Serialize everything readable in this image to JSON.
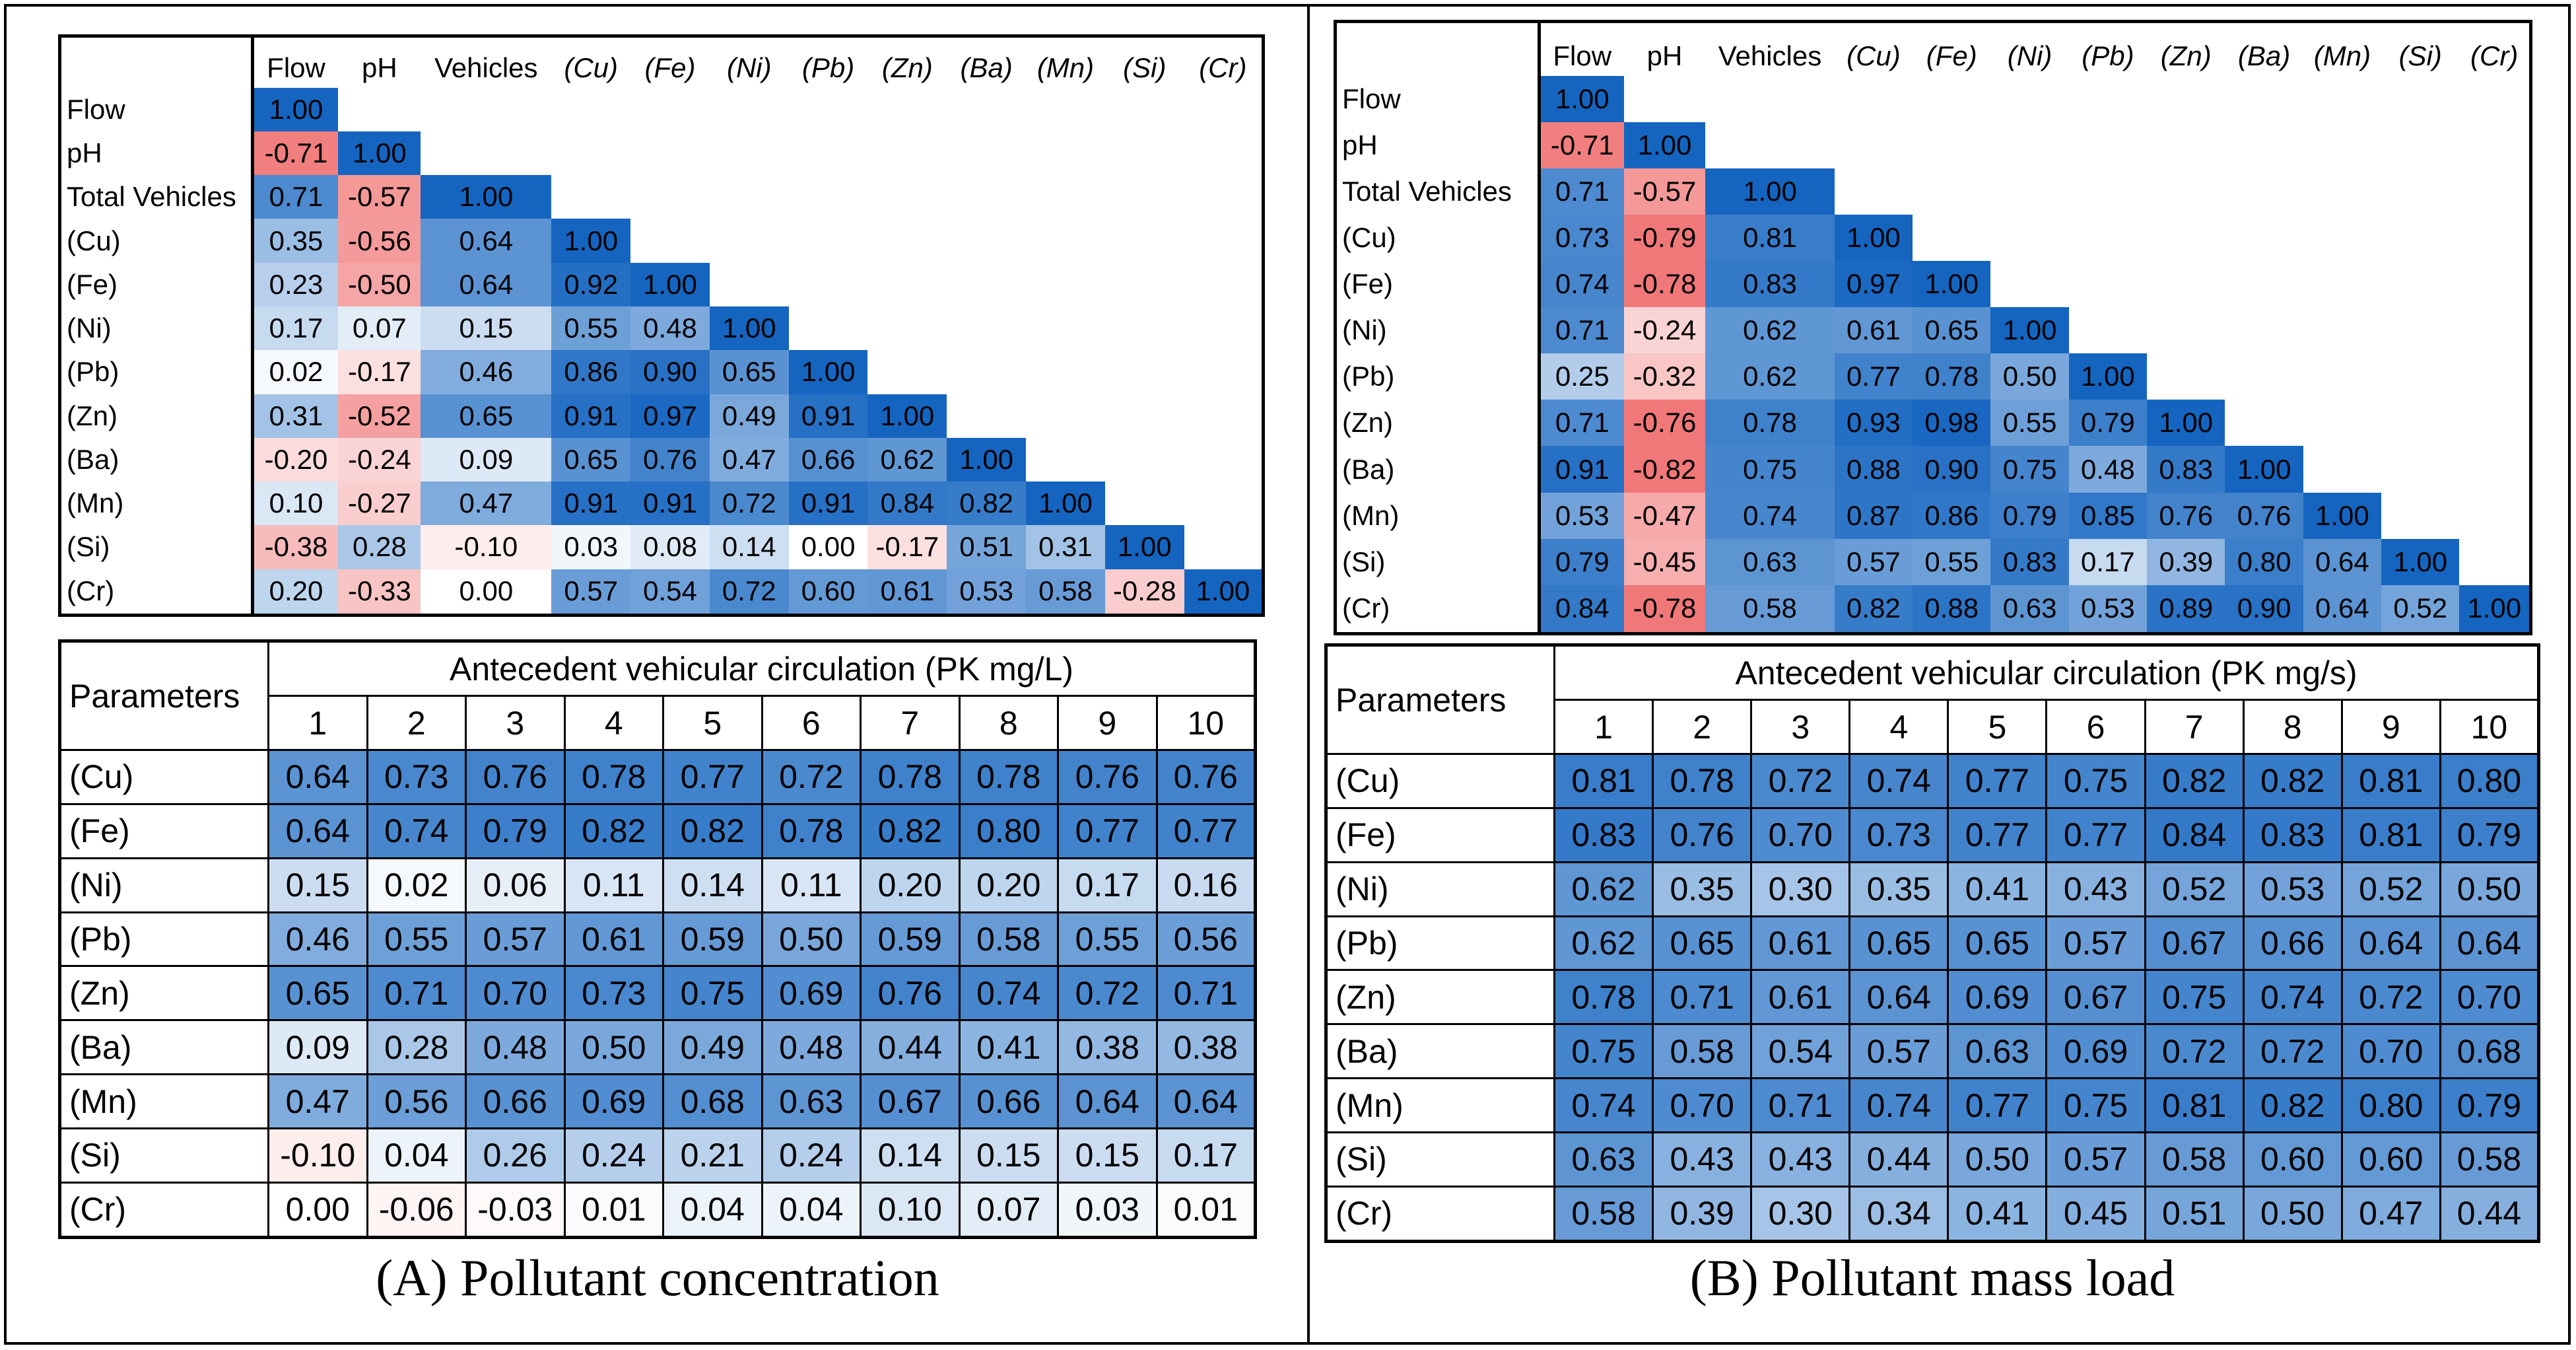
{
  "chart_data": [
    {
      "type": "heatmap",
      "id": "A-correlation",
      "col_labels": [
        "Flow",
        "pH",
        "Vehicles",
        "(Cu)",
        "(Fe)",
        "(Ni)",
        "(Pb)",
        "(Zn)",
        "(Ba)",
        "(Mn)",
        "(Si)",
        "(Cr)"
      ],
      "row_labels": [
        "Flow",
        "pH",
        "Total Vehicles",
        "(Cu)",
        "(Fe)",
        "(Ni)",
        "(Pb)",
        "(Zn)",
        "(Ba)",
        "(Mn)",
        "(Si)",
        "(Cr)"
      ],
      "matrix": [
        [
          "1.00"
        ],
        [
          "-0.71",
          "1.00"
        ],
        [
          "0.71",
          "-0.57",
          "1.00"
        ],
        [
          "0.35",
          "-0.56",
          "0.64",
          "1.00"
        ],
        [
          "0.23",
          "-0.50",
          "0.64",
          "0.92",
          "1.00"
        ],
        [
          "0.17",
          "0.07",
          "0.15",
          "0.55",
          "0.48",
          "1.00"
        ],
        [
          "0.02",
          "-0.17",
          "0.46",
          "0.86",
          "0.90",
          "0.65",
          "1.00"
        ],
        [
          "0.31",
          "-0.52",
          "0.65",
          "0.91",
          "0.97",
          "0.49",
          "0.91",
          "1.00"
        ],
        [
          "-0.20",
          "-0.24",
          "0.09",
          "0.65",
          "0.76",
          "0.47",
          "0.66",
          "0.62",
          "1.00"
        ],
        [
          "0.10",
          "-0.27",
          "0.47",
          "0.91",
          "0.91",
          "0.72",
          "0.91",
          "0.84",
          "0.82",
          "1.00"
        ],
        [
          "-0.38",
          "0.28",
          "-0.10",
          "0.03",
          "0.08",
          "0.14",
          "0.00",
          "-0.17",
          "0.51",
          "0.31",
          "1.00"
        ],
        [
          "0.20",
          "-0.33",
          "0.00",
          "0.57",
          "0.54",
          "0.72",
          "0.60",
          "0.61",
          "0.53",
          "0.58",
          "-0.28",
          "1.00"
        ]
      ]
    },
    {
      "type": "heatmap",
      "id": "B-correlation",
      "col_labels": [
        "Flow",
        "pH",
        "Vehicles",
        "(Cu)",
        "(Fe)",
        "(Ni)",
        "(Pb)",
        "(Zn)",
        "(Ba)",
        "(Mn)",
        "(Si)",
        "(Cr)"
      ],
      "row_labels": [
        "Flow",
        "pH",
        "Total Vehicles",
        "(Cu)",
        "(Fe)",
        "(Ni)",
        "(Pb)",
        "(Zn)",
        "(Ba)",
        "(Mn)",
        "(Si)",
        "(Cr)"
      ],
      "matrix": [
        [
          "1.00"
        ],
        [
          "-0.71",
          "1.00"
        ],
        [
          "0.71",
          "-0.57",
          "1.00"
        ],
        [
          "0.73",
          "-0.79",
          "0.81",
          "1.00"
        ],
        [
          "0.74",
          "-0.78",
          "0.83",
          "0.97",
          "1.00"
        ],
        [
          "0.71",
          "-0.24",
          "0.62",
          "0.61",
          "0.65",
          "1.00"
        ],
        [
          "0.25",
          "-0.32",
          "0.62",
          "0.77",
          "0.78",
          "0.50",
          "1.00"
        ],
        [
          "0.71",
          "-0.76",
          "0.78",
          "0.93",
          "0.98",
          "0.55",
          "0.79",
          "1.00"
        ],
        [
          "0.91",
          "-0.82",
          "0.75",
          "0.88",
          "0.90",
          "0.75",
          "0.48",
          "0.83",
          "1.00"
        ],
        [
          "0.53",
          "-0.47",
          "0.74",
          "0.87",
          "0.86",
          "0.79",
          "0.85",
          "0.76",
          "0.76",
          "1.00"
        ],
        [
          "0.79",
          "-0.45",
          "0.63",
          "0.57",
          "0.55",
          "0.83",
          "0.17",
          "0.39",
          "0.80",
          "0.64",
          "1.00"
        ],
        [
          "0.84",
          "-0.78",
          "0.58",
          "0.82",
          "0.88",
          "0.63",
          "0.53",
          "0.89",
          "0.90",
          "0.64",
          "0.52",
          "1.00"
        ]
      ]
    },
    {
      "type": "table",
      "id": "A-pk",
      "corner": "Parameters",
      "title": "Antecedent vehicular circulation (PK mg/L)",
      "columns": [
        "1",
        "2",
        "3",
        "4",
        "5",
        "6",
        "7",
        "8",
        "9",
        "10"
      ],
      "rows": [
        {
          "label": "(Cu)",
          "values": [
            "0.64",
            "0.73",
            "0.76",
            "0.78",
            "0.77",
            "0.72",
            "0.78",
            "0.78",
            "0.76",
            "0.76"
          ]
        },
        {
          "label": "(Fe)",
          "values": [
            "0.64",
            "0.74",
            "0.79",
            "0.82",
            "0.82",
            "0.78",
            "0.82",
            "0.80",
            "0.77",
            "0.77"
          ]
        },
        {
          "label": "(Ni)",
          "values": [
            "0.15",
            "0.02",
            "0.06",
            "0.11",
            "0.14",
            "0.11",
            "0.20",
            "0.20",
            "0.17",
            "0.16"
          ]
        },
        {
          "label": "(Pb)",
          "values": [
            "0.46",
            "0.55",
            "0.57",
            "0.61",
            "0.59",
            "0.50",
            "0.59",
            "0.58",
            "0.55",
            "0.56"
          ]
        },
        {
          "label": "(Zn)",
          "values": [
            "0.65",
            "0.71",
            "0.70",
            "0.73",
            "0.75",
            "0.69",
            "0.76",
            "0.74",
            "0.72",
            "0.71"
          ]
        },
        {
          "label": "(Ba)",
          "values": [
            "0.09",
            "0.28",
            "0.48",
            "0.50",
            "0.49",
            "0.48",
            "0.44",
            "0.41",
            "0.38",
            "0.38"
          ]
        },
        {
          "label": "(Mn)",
          "values": [
            "0.47",
            "0.56",
            "0.66",
            "0.69",
            "0.68",
            "0.63",
            "0.67",
            "0.66",
            "0.64",
            "0.64"
          ]
        },
        {
          "label": "(Si)",
          "values": [
            "-0.10",
            "0.04",
            "0.26",
            "0.24",
            "0.21",
            "0.24",
            "0.14",
            "0.15",
            "0.15",
            "0.17"
          ]
        },
        {
          "label": "(Cr)",
          "values": [
            "0.00",
            "-0.06",
            "-0.03",
            "0.01",
            "0.04",
            "0.04",
            "0.10",
            "0.07",
            "0.03",
            "0.01"
          ]
        }
      ]
    },
    {
      "type": "table",
      "id": "B-pk",
      "corner": "Parameters",
      "title": "Antecedent vehicular circulation (PK mg/s)",
      "columns": [
        "1",
        "2",
        "3",
        "4",
        "5",
        "6",
        "7",
        "8",
        "9",
        "10"
      ],
      "rows": [
        {
          "label": "(Cu)",
          "values": [
            "0.81",
            "0.78",
            "0.72",
            "0.74",
            "0.77",
            "0.75",
            "0.82",
            "0.82",
            "0.81",
            "0.80"
          ]
        },
        {
          "label": "(Fe)",
          "values": [
            "0.83",
            "0.76",
            "0.70",
            "0.73",
            "0.77",
            "0.77",
            "0.84",
            "0.83",
            "0.81",
            "0.79"
          ]
        },
        {
          "label": "(Ni)",
          "values": [
            "0.62",
            "0.35",
            "0.30",
            "0.35",
            "0.41",
            "0.43",
            "0.52",
            "0.53",
            "0.52",
            "0.50"
          ]
        },
        {
          "label": "(Pb)",
          "values": [
            "0.62",
            "0.65",
            "0.61",
            "0.65",
            "0.65",
            "0.57",
            "0.67",
            "0.66",
            "0.64",
            "0.64"
          ]
        },
        {
          "label": "(Zn)",
          "values": [
            "0.78",
            "0.71",
            "0.61",
            "0.64",
            "0.69",
            "0.67",
            "0.75",
            "0.74",
            "0.72",
            "0.70"
          ]
        },
        {
          "label": "(Ba)",
          "values": [
            "0.75",
            "0.58",
            "0.54",
            "0.57",
            "0.63",
            "0.69",
            "0.72",
            "0.72",
            "0.70",
            "0.68"
          ]
        },
        {
          "label": "(Mn)",
          "values": [
            "0.74",
            "0.70",
            "0.71",
            "0.74",
            "0.77",
            "0.75",
            "0.81",
            "0.82",
            "0.80",
            "0.79"
          ]
        },
        {
          "label": "(Si)",
          "values": [
            "0.63",
            "0.43",
            "0.43",
            "0.44",
            "0.50",
            "0.57",
            "0.58",
            "0.60",
            "0.60",
            "0.58"
          ]
        },
        {
          "label": "(Cr)",
          "values": [
            "0.58",
            "0.39",
            "0.30",
            "0.34",
            "0.41",
            "0.45",
            "0.51",
            "0.50",
            "0.47",
            "0.44"
          ]
        }
      ]
    }
  ],
  "captions": {
    "a": "(A) Pollutant concentration",
    "b": "(B) Pollutant mass load"
  },
  "colors": {
    "positive_max": "#1565c0",
    "negative_max": "#f07878",
    "neutral": "#ffffff"
  }
}
